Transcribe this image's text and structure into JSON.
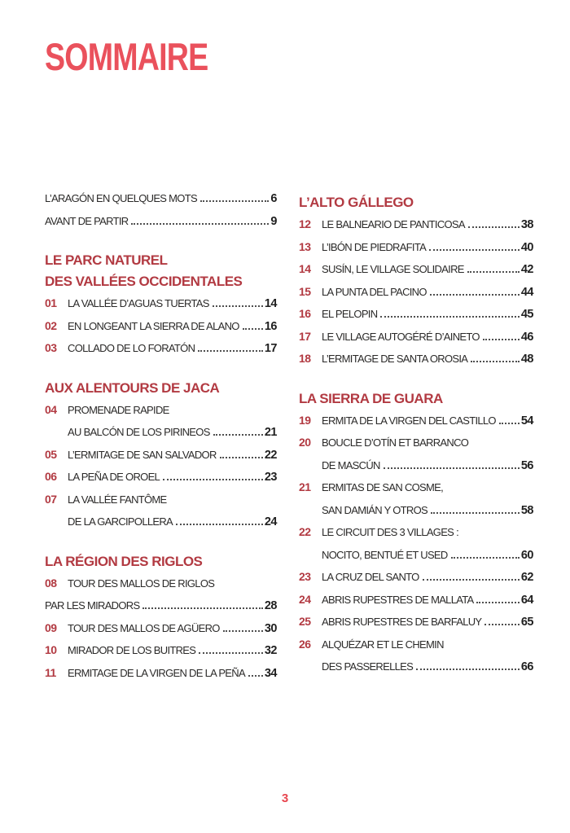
{
  "page": {
    "title": "SOMMAIRE",
    "folio": "3",
    "accent_color": "#ea515c",
    "heading_color": "#b23a42",
    "text_color": "#2b2a29"
  },
  "columns": [
    {
      "name": "left",
      "sections": [
        {
          "heading_lines": [],
          "entries": [
            {
              "num": null,
              "lines": [
                {
                  "text": "L’ARAGÓN EN QUELQUES MOTS",
                  "page": "6"
                }
              ]
            },
            {
              "num": null,
              "lines": [
                {
                  "text": "AVANT DE PARTIR",
                  "page": "9"
                }
              ]
            }
          ]
        },
        {
          "heading_lines": [
            "LE PARC NATUREL",
            "DES VALLÉES OCCIDENTALES"
          ],
          "entries": [
            {
              "num": "01",
              "lines": [
                {
                  "text": "LA VALLÉE D’AGUAS TUERTAS",
                  "page": "14"
                }
              ]
            },
            {
              "num": "02",
              "lines": [
                {
                  "text": "EN LONGEANT LA SIERRA DE ALANO",
                  "page": "16"
                }
              ]
            },
            {
              "num": "03",
              "lines": [
                {
                  "text": "COLLADO DE LO FORATÓN",
                  "page": "17"
                }
              ]
            }
          ]
        },
        {
          "heading_lines": [
            "AUX ALENTOURS DE JACA"
          ],
          "entries": [
            {
              "num": "04",
              "lines": [
                {
                  "text": "PROMENADE RAPIDE"
                },
                {
                  "text": "AU BALCÓN DE LOS PIRINEOS",
                  "page": "21",
                  "indent": true
                }
              ]
            },
            {
              "num": "05",
              "lines": [
                {
                  "text": "L’ERMITAGE DE SAN SALVADOR",
                  "page": "22"
                }
              ]
            },
            {
              "num": "06",
              "lines": [
                {
                  "text": "LA PEÑA DE OROEL",
                  "page": "23"
                }
              ]
            },
            {
              "num": "07",
              "lines": [
                {
                  "text": "LA VALLÉE FANTÔME"
                },
                {
                  "text": "DE LA GARCIPOLLERA",
                  "page": "24",
                  "indent": true
                }
              ]
            }
          ]
        },
        {
          "heading_lines": [
            "LA RÉGION DES RIGLOS"
          ],
          "entries": [
            {
              "num": "08",
              "lines": [
                {
                  "text": "TOUR DES MALLOS DE RIGLOS"
                },
                {
                  "text": "PAR LES MIRADORS",
                  "page": "28",
                  "indent": false
                }
              ]
            },
            {
              "num": "09",
              "lines": [
                {
                  "text": "TOUR DES MALLOS DE AGÜERO",
                  "page": "30"
                }
              ]
            },
            {
              "num": "10",
              "lines": [
                {
                  "text": "MIRADOR DE LOS BUITRES",
                  "page": "32"
                }
              ]
            },
            {
              "num": "11",
              "lines": [
                {
                  "text": "ERMITAGE DE LA VIRGEN DE LA PEÑA",
                  "page": "34"
                }
              ]
            }
          ]
        }
      ]
    },
    {
      "name": "right",
      "sections": [
        {
          "heading_lines": [
            "L’ALTO GÁLLEGO"
          ],
          "entries": [
            {
              "num": "12",
              "lines": [
                {
                  "text": "LE BALNEARIO DE PANTICOSA",
                  "page": "38"
                }
              ]
            },
            {
              "num": "13",
              "lines": [
                {
                  "text": "L’IBÓN DE PIEDRAFITA",
                  "page": "40"
                }
              ]
            },
            {
              "num": "14",
              "lines": [
                {
                  "text": "SUSÍN, LE VILLAGE SOLIDAIRE",
                  "page": "42"
                }
              ]
            },
            {
              "num": "15",
              "lines": [
                {
                  "text": "LA PUNTA DEL PACINO",
                  "page": "44"
                }
              ]
            },
            {
              "num": "16",
              "lines": [
                {
                  "text": "EL PELOPIN",
                  "page": "45"
                }
              ]
            },
            {
              "num": "17",
              "lines": [
                {
                  "text": "LE VILLAGE AUTOGÉRÉ D’AINETO",
                  "page": "46"
                }
              ]
            },
            {
              "num": "18",
              "lines": [
                {
                  "text": "L’ERMITAGE DE SANTA OROSIA",
                  "page": "48"
                }
              ]
            }
          ]
        },
        {
          "heading_lines": [
            "LA SIERRA DE GUARA"
          ],
          "entries": [
            {
              "num": "19",
              "lines": [
                {
                  "text": "ERMITA DE LA VIRGEN DEL CASTILLO",
                  "page": "54"
                }
              ]
            },
            {
              "num": "20",
              "lines": [
                {
                  "text": "BOUCLE D’OTÍN ET BARRANCO"
                },
                {
                  "text": "DE MASCÚN",
                  "page": "56",
                  "indent": true
                }
              ]
            },
            {
              "num": "21",
              "lines": [
                {
                  "text": "ERMITAS DE SAN COSME,"
                },
                {
                  "text": "SAN DAMIÁN Y OTROS",
                  "page": "58",
                  "indent": true
                }
              ]
            },
            {
              "num": "22",
              "lines": [
                {
                  "text": "LE CIRCUIT DES 3 VILLAGES :"
                },
                {
                  "text": "NOCITO, BENTUÉ ET USED",
                  "page": "60",
                  "indent": true
                }
              ]
            },
            {
              "num": "23",
              "lines": [
                {
                  "text": "LA CRUZ DEL SANTO",
                  "page": "62"
                }
              ]
            },
            {
              "num": "24",
              "lines": [
                {
                  "text": "ABRIS RUPESTRES DE MALLATA",
                  "page": "64"
                }
              ]
            },
            {
              "num": "25",
              "lines": [
                {
                  "text": "ABRIS RUPESTRES DE BARFALUY",
                  "page": "65"
                }
              ]
            },
            {
              "num": "26",
              "lines": [
                {
                  "text": "ALQUÉZAR ET LE CHEMIN"
                },
                {
                  "text": "DES PASSERELLES",
                  "page": "66",
                  "indent": true
                }
              ]
            }
          ]
        }
      ]
    }
  ]
}
